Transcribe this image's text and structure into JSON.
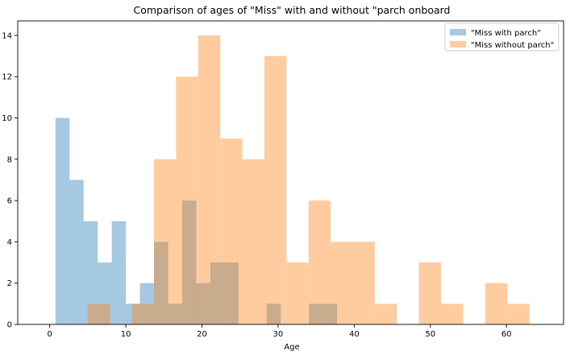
{
  "chart_data": {
    "type": "histogram",
    "title": "Comparison of ages of \"Miss\" with and without \"parch onboard",
    "xlabel": "Age",
    "ylabel": "",
    "xlim": [
      -4.2,
      67.5
    ],
    "ylim": [
      0,
      14.7
    ],
    "x_ticks": [
      0,
      10,
      20,
      30,
      40,
      50,
      60
    ],
    "y_ticks": [
      0,
      2,
      4,
      6,
      8,
      10,
      12,
      14
    ],
    "grid": false,
    "legend_position": "top-right",
    "series": [
      {
        "name": "\"Miss with parch\"",
        "color": "#1f77b4",
        "opacity": 0.4,
        "bins": [
          {
            "x0": 0.75,
            "x1": 2.6,
            "count": 10
          },
          {
            "x0": 2.6,
            "x1": 4.45,
            "count": 7
          },
          {
            "x0": 4.45,
            "x1": 6.3,
            "count": 5
          },
          {
            "x0": 6.3,
            "x1": 8.15,
            "count": 3
          },
          {
            "x0": 8.15,
            "x1": 10.0,
            "count": 5
          },
          {
            "x0": 10.0,
            "x1": 11.85,
            "count": 1
          },
          {
            "x0": 11.85,
            "x1": 13.7,
            "count": 2
          },
          {
            "x0": 13.7,
            "x1": 15.55,
            "count": 4
          },
          {
            "x0": 15.55,
            "x1": 17.4,
            "count": 1
          },
          {
            "x0": 17.4,
            "x1": 19.25,
            "count": 6
          },
          {
            "x0": 19.25,
            "x1": 21.1,
            "count": 2
          },
          {
            "x0": 21.1,
            "x1": 22.95,
            "count": 3
          },
          {
            "x0": 22.95,
            "x1": 24.8,
            "count": 3
          },
          {
            "x0": 24.8,
            "x1": 26.65,
            "count": 0
          },
          {
            "x0": 26.65,
            "x1": 28.5,
            "count": 0
          },
          {
            "x0": 28.5,
            "x1": 30.35,
            "count": 1
          },
          {
            "x0": 30.35,
            "x1": 32.2,
            "count": 0
          },
          {
            "x0": 32.2,
            "x1": 34.05,
            "count": 0
          },
          {
            "x0": 34.05,
            "x1": 35.9,
            "count": 1
          },
          {
            "x0": 35.9,
            "x1": 37.75,
            "count": 1
          }
        ]
      },
      {
        "name": "\"Miss without parch\"",
        "color": "#ff7f0e",
        "opacity": 0.4,
        "bins": [
          {
            "x0": 5.0,
            "x1": 7.9,
            "count": 1
          },
          {
            "x0": 7.9,
            "x1": 10.8,
            "count": 0
          },
          {
            "x0": 10.8,
            "x1": 13.7,
            "count": 1
          },
          {
            "x0": 13.7,
            "x1": 16.6,
            "count": 8
          },
          {
            "x0": 16.6,
            "x1": 19.5,
            "count": 12
          },
          {
            "x0": 19.5,
            "x1": 22.4,
            "count": 14
          },
          {
            "x0": 22.4,
            "x1": 25.3,
            "count": 9
          },
          {
            "x0": 25.3,
            "x1": 28.2,
            "count": 8
          },
          {
            "x0": 28.2,
            "x1": 31.1,
            "count": 13
          },
          {
            "x0": 31.1,
            "x1": 34.0,
            "count": 3
          },
          {
            "x0": 34.0,
            "x1": 36.9,
            "count": 6
          },
          {
            "x0": 36.9,
            "x1": 39.8,
            "count": 4
          },
          {
            "x0": 39.8,
            "x1": 42.7,
            "count": 4
          },
          {
            "x0": 42.7,
            "x1": 45.6,
            "count": 1
          },
          {
            "x0": 45.6,
            "x1": 48.5,
            "count": 0
          },
          {
            "x0": 48.5,
            "x1": 51.4,
            "count": 3
          },
          {
            "x0": 51.4,
            "x1": 54.3,
            "count": 1
          },
          {
            "x0": 54.3,
            "x1": 57.2,
            "count": 0
          },
          {
            "x0": 57.2,
            "x1": 60.1,
            "count": 2
          },
          {
            "x0": 60.1,
            "x1": 63.0,
            "count": 1
          }
        ]
      }
    ]
  }
}
